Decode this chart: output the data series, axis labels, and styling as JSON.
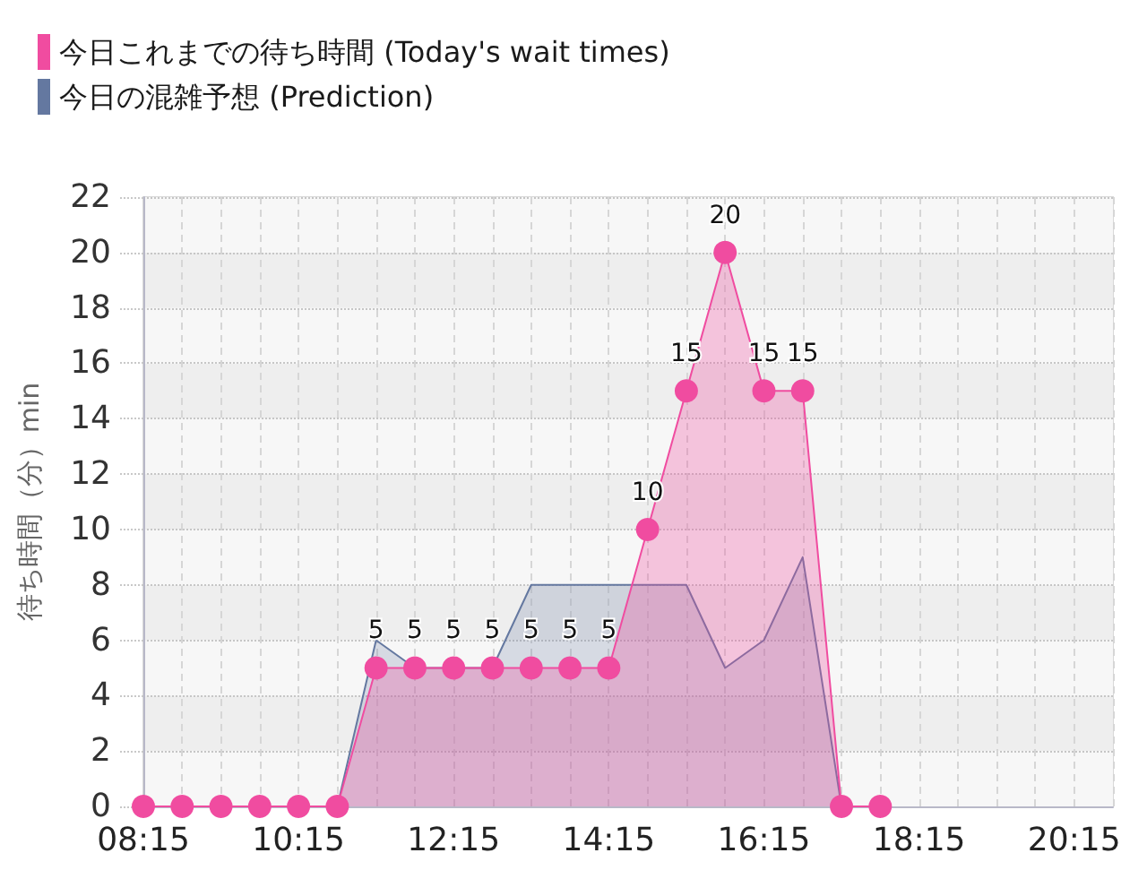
{
  "chart_data": {
    "type": "area",
    "legend": "top left",
    "grid": true,
    "ylabel": "待ち時間（分）min",
    "xlim": [
      8.25,
      20.75
    ],
    "xticks": [
      {
        "value": 8.25,
        "label": "08:15"
      },
      {
        "value": 8.75,
        "label": null
      },
      {
        "value": 9.25,
        "label": null
      },
      {
        "value": 9.75,
        "label": null
      },
      {
        "value": 10.25,
        "label": "10:15"
      },
      {
        "value": 10.75,
        "label": null
      },
      {
        "value": 11.25,
        "label": null
      },
      {
        "value": 11.75,
        "label": null
      },
      {
        "value": 12.25,
        "label": "12:15"
      },
      {
        "value": 12.75,
        "label": null
      },
      {
        "value": 13.25,
        "label": null
      },
      {
        "value": 13.75,
        "label": null
      },
      {
        "value": 14.25,
        "label": "14:15"
      },
      {
        "value": 14.75,
        "label": null
      },
      {
        "value": 15.25,
        "label": null
      },
      {
        "value": 15.75,
        "label": null
      },
      {
        "value": 16.25,
        "label": "16:15"
      },
      {
        "value": 16.75,
        "label": null
      },
      {
        "value": 17.25,
        "label": null
      },
      {
        "value": 17.75,
        "label": null
      },
      {
        "value": 18.25,
        "label": "18:15"
      },
      {
        "value": 18.75,
        "label": null
      },
      {
        "value": 19.25,
        "label": null
      },
      {
        "value": 19.75,
        "label": null
      },
      {
        "value": 20.25,
        "label": "20:15"
      },
      {
        "value": 20.75,
        "label": null
      }
    ],
    "ylim": [
      0,
      22
    ],
    "yticks": [
      0,
      2,
      4,
      6,
      8,
      10,
      12,
      14,
      16,
      18,
      20,
      22
    ],
    "x": [
      8.25,
      8.75,
      9.25,
      9.75,
      10.25,
      10.75,
      11.25,
      11.75,
      12.25,
      12.75,
      13.25,
      13.75,
      14.25,
      14.75,
      15.25,
      15.75,
      16.25,
      16.75,
      17.25,
      17.75
    ],
    "series": [
      {
        "name": "今日これまでの待ち時間 (Today's wait times)",
        "color": "#f04ca0",
        "marker": "circle",
        "values": [
          0,
          0,
          0,
          0,
          0,
          0,
          5,
          5,
          5,
          5,
          5,
          5,
          5,
          10,
          15,
          20,
          15,
          15,
          0,
          0
        ],
        "value_labels": [
          null,
          null,
          null,
          null,
          null,
          null,
          "5",
          "5",
          "5",
          "5",
          "5",
          "5",
          "5",
          "10",
          "15",
          "20",
          "15",
          "15",
          null,
          null
        ]
      },
      {
        "name": "今日の混雑予想 (Prediction)",
        "color": "#6478a0",
        "marker": "none",
        "values": [
          0,
          0,
          0,
          0,
          0,
          0,
          6,
          5,
          5,
          5,
          8,
          8,
          8,
          8,
          8,
          5,
          6,
          9,
          0,
          0
        ]
      }
    ]
  }
}
